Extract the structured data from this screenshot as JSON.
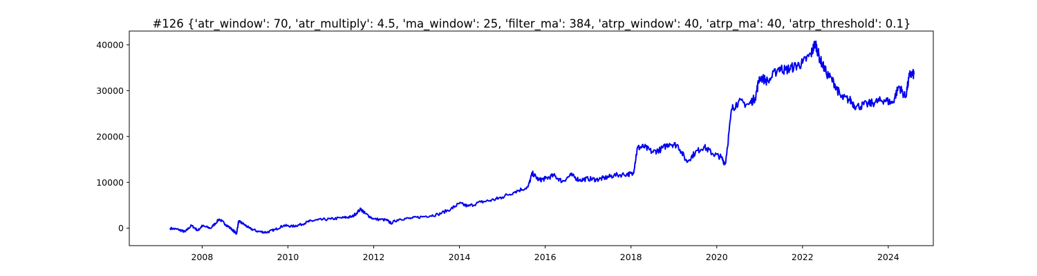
{
  "chart_data": {
    "type": "line",
    "title": "#126 {'atr_window': 70, 'atr_multiply': 4.5, 'ma_window': 25, 'filter_ma': 384, 'atrp_window': 40, 'atrp_ma': 40, 'atrp_threshold': 0.1}",
    "xlabel": "",
    "ylabel": "",
    "xlim": [
      2006.3,
      2025.05
    ],
    "ylim": [
      -3800,
      43000
    ],
    "x_ticks": [
      2008,
      2010,
      2012,
      2014,
      2016,
      2018,
      2020,
      2022,
      2024
    ],
    "y_ticks": [
      0,
      10000,
      20000,
      30000,
      40000
    ],
    "grid": false,
    "legend": "none",
    "line_color": "#0000ee",
    "series": [
      {
        "x": [
          2007.25,
          2007.45,
          2007.6,
          2007.75,
          2007.9,
          2008.0,
          2008.2,
          2008.4,
          2008.55,
          2008.7,
          2008.8,
          2008.85,
          2008.95,
          2009.1,
          2009.3,
          2009.5,
          2009.7,
          2009.9,
          2010.1,
          2010.3,
          2010.5,
          2010.7,
          2011.0,
          2011.3,
          2011.5,
          2011.7,
          2011.8,
          2012.0,
          2012.3,
          2012.4,
          2012.6,
          2012.9,
          2013.2,
          2013.5,
          2013.8,
          2014.0,
          2014.2,
          2014.5,
          2014.8,
          2015.0,
          2015.3,
          2015.6,
          2015.7,
          2015.85,
          2016.0,
          2016.2,
          2016.4,
          2016.6,
          2016.8,
          2017.0,
          2017.2,
          2017.4,
          2017.6,
          2017.9,
          2018.05,
          2018.15,
          2018.3,
          2018.5,
          2018.7,
          2018.9,
          2019.1,
          2019.3,
          2019.5,
          2019.7,
          2019.9,
          2020.1,
          2020.2,
          2020.35,
          2020.5,
          2020.75,
          2020.9,
          2021.0,
          2021.2,
          2021.45,
          2021.6,
          2021.8,
          2022.0,
          2022.2,
          2022.3,
          2022.4,
          2022.55,
          2022.75,
          2022.9,
          2023.1,
          2023.25,
          2023.5,
          2023.7,
          2023.9,
          2024.1,
          2024.25,
          2024.4,
          2024.5,
          2024.6
        ],
        "y": [
          0,
          -300,
          -800,
          600,
          -500,
          500,
          0,
          2000,
          800,
          -300,
          -1200,
          1500,
          1000,
          0,
          -700,
          -900,
          -300,
          600,
          400,
          800,
          1500,
          1800,
          2000,
          2300,
          2500,
          4200,
          3200,
          2000,
          1800,
          1100,
          2000,
          2200,
          2600,
          3000,
          4200,
          5400,
          4800,
          5700,
          6200,
          6800,
          8000,
          9000,
          12000,
          10500,
          10800,
          11500,
          10200,
          11600,
          10500,
          10800,
          10600,
          11000,
          11500,
          11800,
          11800,
          17500,
          17800,
          16600,
          17200,
          18500,
          18000,
          14500,
          16500,
          17800,
          16300,
          15500,
          14000,
          26000,
          27500,
          27000,
          28500,
          33000,
          32000,
          35000,
          34500,
          35200,
          36000,
          38000,
          40500,
          37000,
          34000,
          31500,
          28500,
          28000,
          26500,
          27000,
          27500,
          28000,
          27300,
          31000,
          28500,
          33500,
          33600
        ]
      }
    ]
  }
}
